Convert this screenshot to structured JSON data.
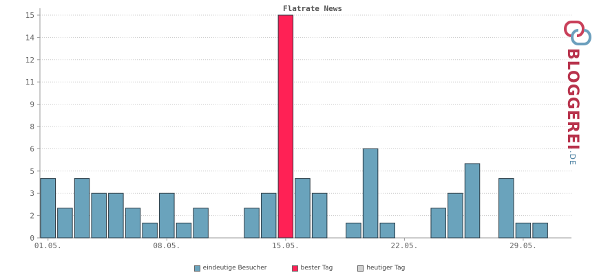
{
  "chart_data": {
    "type": "bar",
    "title": "Flatrate News",
    "xlabel": "",
    "ylabel": "",
    "ylim": [
      0,
      15
    ],
    "grid": true,
    "legend_position": "bottom",
    "y_tick_labels": [
      "0",
      "2",
      "3",
      "5",
      "6",
      "8",
      "9",
      "11",
      "12",
      "14",
      "15"
    ],
    "y_tick_values": [
      0,
      1.5,
      3,
      4.5,
      6,
      7.5,
      9,
      10.5,
      12,
      13.5,
      15
    ],
    "x_tick_labels": [
      {
        "label": "01.05.",
        "day": 1
      },
      {
        "label": "08.05.",
        "day": 8
      },
      {
        "label": "15.05.",
        "day": 15
      },
      {
        "label": "22.05.",
        "day": 22
      },
      {
        "label": "29.05.",
        "day": 29
      }
    ],
    "days": [
      1,
      2,
      3,
      4,
      5,
      6,
      7,
      8,
      9,
      10,
      11,
      12,
      13,
      14,
      15,
      16,
      17,
      18,
      19,
      20,
      21,
      22,
      23,
      24,
      25,
      26,
      27,
      28,
      29,
      30
    ],
    "series": [
      {
        "name": "eindeutige Besucher",
        "color": "#6aa3bc",
        "values": [
          4,
          2,
          4,
          3,
          3,
          2,
          1,
          3,
          1,
          2,
          0,
          0,
          2,
          3,
          0,
          4,
          3,
          0,
          1,
          6,
          1,
          0,
          0,
          2,
          3,
          5,
          0,
          4,
          1,
          1
        ]
      },
      {
        "name": "bester Tag",
        "color": "#ff2155",
        "values": [
          0,
          0,
          0,
          0,
          0,
          0,
          0,
          0,
          0,
          0,
          0,
          0,
          0,
          0,
          15,
          0,
          0,
          0,
          0,
          0,
          0,
          0,
          0,
          0,
          0,
          0,
          0,
          0,
          0,
          0
        ]
      },
      {
        "name": "heutiger Tag",
        "color": "#d0d0d0",
        "values": []
      }
    ]
  },
  "logo": {
    "name": "BLOGGEREI",
    "tld": ".DE"
  }
}
